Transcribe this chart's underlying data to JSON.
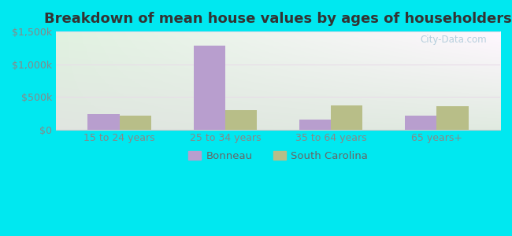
{
  "title": "Breakdown of mean house values by ages of householders",
  "categories": [
    "15 to 24 years",
    "25 to 34 years",
    "35 to 64 years",
    "65 years+"
  ],
  "bonneau_values": [
    230000,
    1290000,
    155000,
    215000
  ],
  "sc_values": [
    210000,
    295000,
    370000,
    355000
  ],
  "bonneau_color": "#b89ece",
  "sc_color": "#b8be88",
  "ylim": [
    0,
    1500000
  ],
  "yticks": [
    0,
    500000,
    1000000,
    1500000
  ],
  "ytick_labels": [
    "$0",
    "$500k",
    "$1,000k",
    "$1,500k"
  ],
  "background_outer": "#00e8f0",
  "grid_color": "#dde8cc",
  "title_fontsize": 13,
  "tick_fontsize": 9,
  "legend_labels": [
    "Bonneau",
    "South Carolina"
  ],
  "watermark": "City-Data.com"
}
